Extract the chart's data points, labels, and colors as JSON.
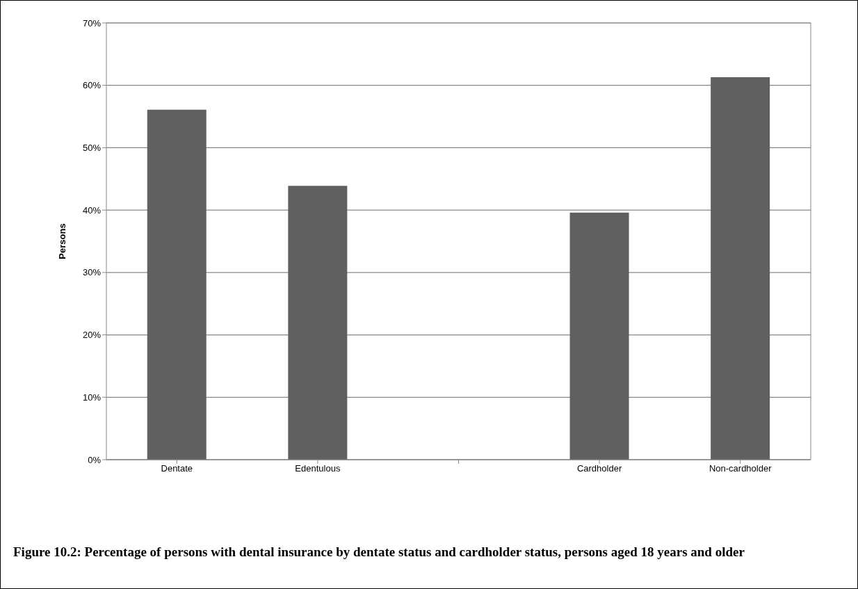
{
  "chart_data": {
    "type": "bar",
    "title": "Figure 10.2: Percentage of persons with dental insurance by dentate status and cardholder status, persons aged 18 years and older",
    "ylabel": "Persons",
    "categories": [
      "Dentate",
      "Edentulous",
      null,
      "Cardholder",
      "Non-cardholder"
    ],
    "values": [
      56.1,
      43.9,
      null,
      39.6,
      61.3
    ],
    "color": "#606060",
    "ylim": [
      0,
      70
    ],
    "yticks": [
      {
        "value": 0,
        "label": "0%"
      },
      {
        "value": 10,
        "label": "10%"
      },
      {
        "value": 20,
        "label": "20%"
      },
      {
        "value": 30,
        "label": "30%"
      },
      {
        "value": 40,
        "label": "40%"
      },
      {
        "value": 50,
        "label": "50%"
      },
      {
        "value": 60,
        "label": "60%"
      },
      {
        "value": 70,
        "label": "70%"
      }
    ],
    "grid": "y"
  }
}
